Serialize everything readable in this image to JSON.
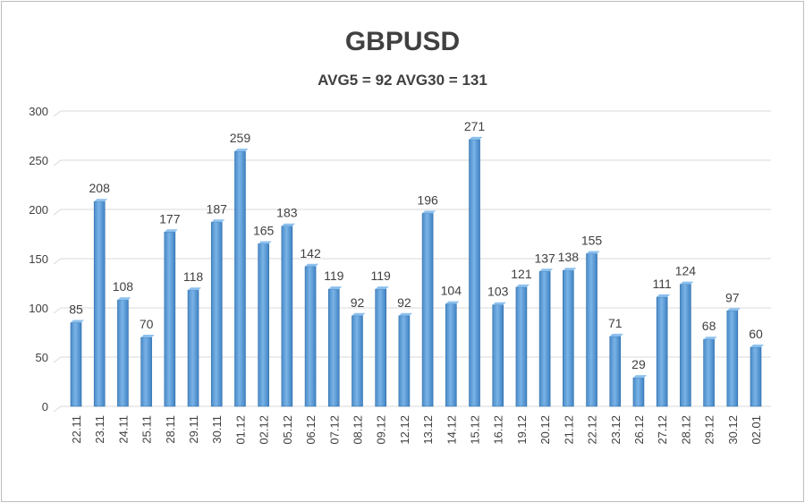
{
  "chart_data": {
    "type": "bar",
    "title": "GBPUSD",
    "subtitle": "AVG5 = 92 AVG30 = 131",
    "xlabel": "",
    "ylabel": "",
    "ylim": [
      0,
      300
    ],
    "yticks": [
      0,
      50,
      100,
      150,
      200,
      250,
      300
    ],
    "grid": true,
    "legend": "none",
    "bar_color": "#5b9bd5",
    "categories": [
      "22.11",
      "23.11",
      "24.11",
      "25.11",
      "28.11",
      "29.11",
      "30.11",
      "01.12",
      "02.12",
      "05.12",
      "06.12",
      "07.12",
      "08.12",
      "09.12",
      "12.12",
      "13.12",
      "14.12",
      "15.12",
      "16.12",
      "19.12",
      "20.12",
      "21.12",
      "22.12",
      "23.12",
      "26.12",
      "27.12",
      "28.12",
      "29.12",
      "30.12",
      "02.01"
    ],
    "values": [
      85,
      208,
      108,
      70,
      177,
      118,
      187,
      259,
      165,
      183,
      142,
      119,
      92,
      119,
      92,
      196,
      104,
      271,
      103,
      121,
      137,
      138,
      155,
      71,
      29,
      111,
      124,
      68,
      97,
      60
    ]
  }
}
